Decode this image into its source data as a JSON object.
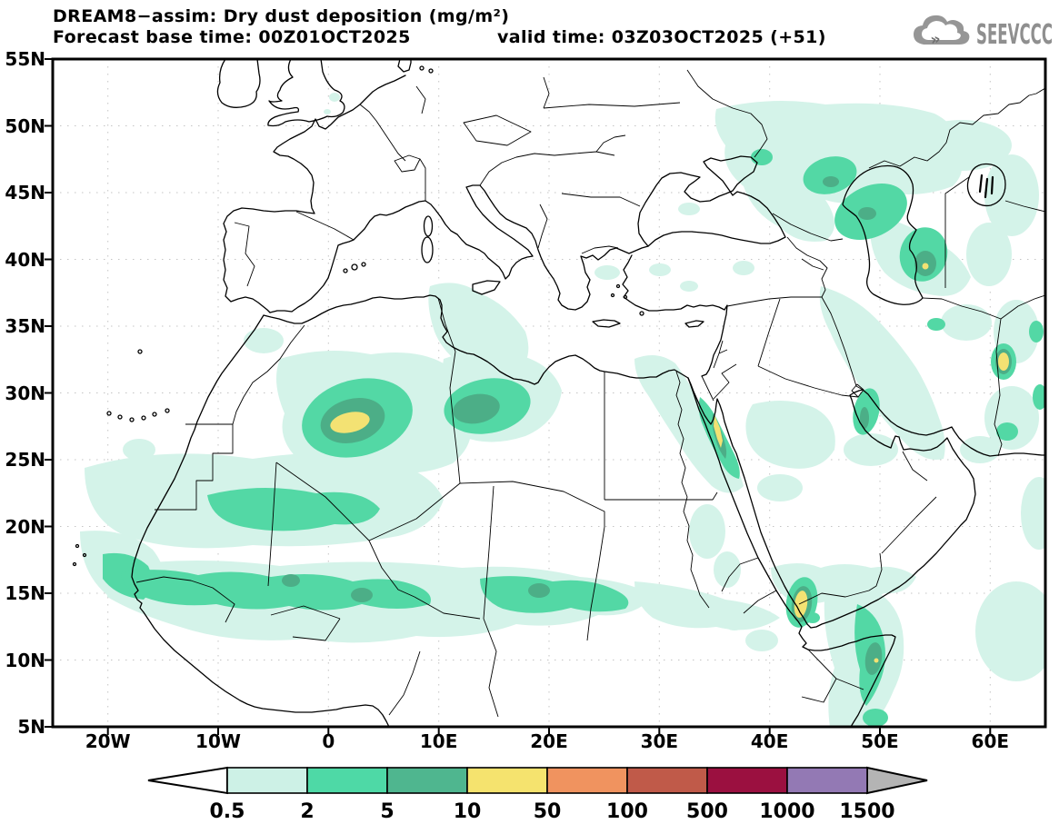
{
  "header": {
    "title": "DREAM8−assim: Dry dust deposition (mg/m²)",
    "forecast_base": "Forecast base time: 00Z01OCT2025",
    "valid_time": "valid time: 03Z03OCT2025 (+51)"
  },
  "logo": {
    "text": "SEEVCCC",
    "icon": "cloud-with-chevrons",
    "color": "#8f8f8f"
  },
  "axes": {
    "lat_ticks": [
      {
        "label": "55N",
        "lat": 55
      },
      {
        "label": "50N",
        "lat": 50
      },
      {
        "label": "45N",
        "lat": 45
      },
      {
        "label": "40N",
        "lat": 40
      },
      {
        "label": "35N",
        "lat": 35
      },
      {
        "label": "30N",
        "lat": 30
      },
      {
        "label": "25N",
        "lat": 25
      },
      {
        "label": "20N",
        "lat": 20
      },
      {
        "label": "15N",
        "lat": 15
      },
      {
        "label": "10N",
        "lat": 10
      },
      {
        "label": "5N",
        "lat": 5
      }
    ],
    "lon_ticks": [
      {
        "label": "20W",
        "lon": -20
      },
      {
        "label": "10W",
        "lon": -10
      },
      {
        "label": "0",
        "lon": 0
      },
      {
        "label": "10E",
        "lon": 10
      },
      {
        "label": "20E",
        "lon": 20
      },
      {
        "label": "30E",
        "lon": 30
      },
      {
        "label": "40E",
        "lon": 40
      },
      {
        "label": "50E",
        "lon": 50
      },
      {
        "label": "60E",
        "lon": 60
      }
    ]
  },
  "colorbar": {
    "levels": [
      "0.5",
      "2",
      "5",
      "10",
      "50",
      "100",
      "500",
      "1000",
      "1500"
    ],
    "segment_colors": [
      "#cdf1e6",
      "#4ed9a6",
      "#4fb68f",
      "#f5e36e",
      "#f0935f",
      "#c05a49",
      "#9b1040",
      "#9379b4"
    ],
    "under_arrow_color": "#ffffff",
    "over_arrow_color": "#b4b4b4"
  },
  "map_colors": {
    "level1": "#d4f3e9",
    "level2": "#53d8a5",
    "level3": "#4cae87",
    "level4": "#f3e273"
  },
  "chart_data": {
    "type": "filled-contour-map",
    "model": "DREAM8-assim",
    "variable": "Dry dust deposition",
    "units": "mg/m²",
    "base_time": "00Z01OCT2025",
    "valid_time": "03Z03OCT2025",
    "forecast_hour": 51,
    "lon_range": [
      -25,
      65
    ],
    "lat_range": [
      5,
      55
    ],
    "contour_levels_mg_m2": [
      0.5,
      2,
      5,
      10,
      50,
      100,
      500,
      1000,
      1500
    ],
    "hotspots": [
      {
        "region": "Central Algeria (~2E, 28N)",
        "peak_band": "10-50"
      },
      {
        "region": "Central Libya (~13E, 29N)",
        "peak_band": "5-10"
      },
      {
        "region": "Sahel band 13-16N, Senegal to Chad",
        "peak_band": "5-10"
      },
      {
        "region": "Mauritania / N Mali (~20-22N)",
        "peak_band": "2-5"
      },
      {
        "region": "NW Red Sea coast, Egypt (~34E, 27N)",
        "peak_band": "10-50"
      },
      {
        "region": "Southern Red Sea / Yemen coast (~43E, 14N)",
        "peak_band": "10-50"
      },
      {
        "region": "Somalia coast (~48E, 10N)",
        "peak_band": "10-50"
      },
      {
        "region": "Caucasus / west Caspian (44-50E, 42-47N)",
        "peak_band": "5-10"
      },
      {
        "region": "South Caspian (~54E, 39N)",
        "peak_band": "10-50"
      },
      {
        "region": "East Iran / Afghan border (~61E, 32N)",
        "peak_band": "10-50"
      },
      {
        "region": "West Persian Gulf coast (~48E, 27N)",
        "peak_band": "5-10"
      }
    ]
  }
}
